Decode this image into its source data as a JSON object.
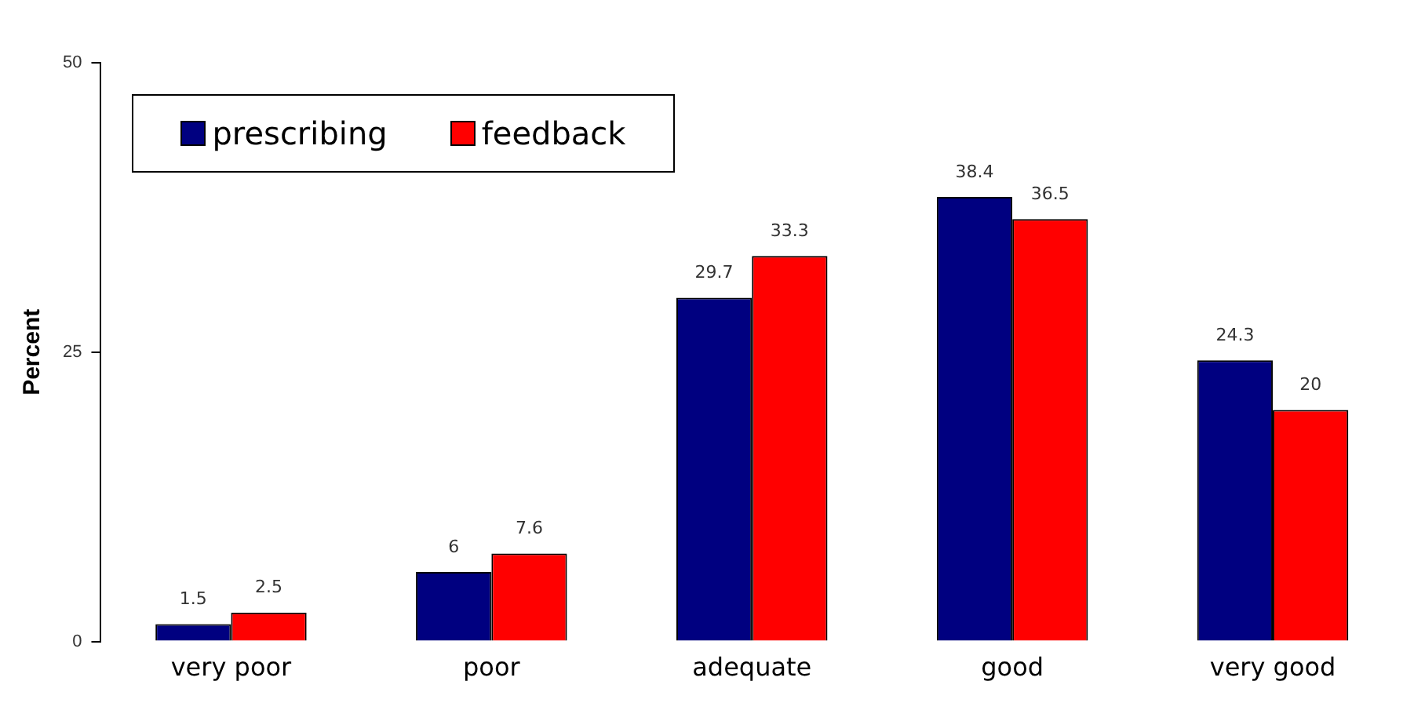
{
  "chart_data": {
    "type": "bar",
    "ylabel": "Percent",
    "categories": [
      "very poor",
      "poor",
      "adequate",
      "good",
      "very good"
    ],
    "series": [
      {
        "name": "prescribing",
        "color": "#000080",
        "values": [
          1.5,
          6,
          29.7,
          38.4,
          24.3
        ]
      },
      {
        "name": "feedback",
        "color": "#ff0000",
        "values": [
          2.5,
          7.6,
          33.3,
          36.5,
          20
        ]
      }
    ],
    "ylim": [
      0,
      50
    ],
    "yticks": [
      0,
      25,
      50
    ],
    "grid": false,
    "legend": "top left",
    "data_labels": true
  }
}
